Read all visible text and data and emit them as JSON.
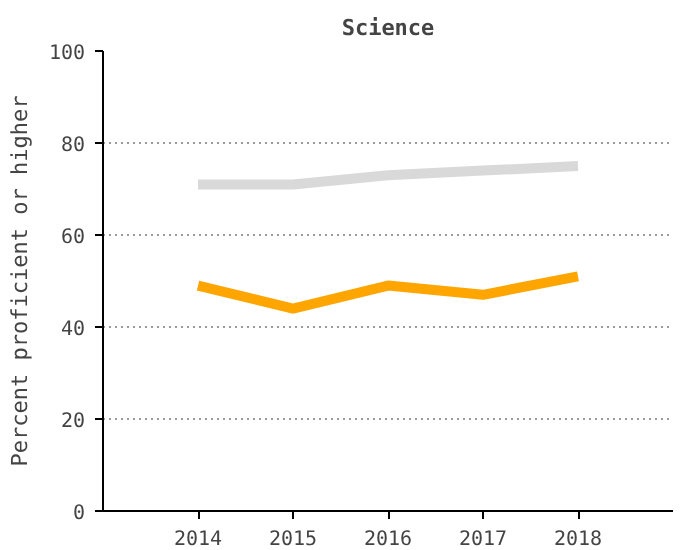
{
  "chart_data": {
    "type": "line",
    "title": "Science",
    "ylabel": "Percent proficient or higher",
    "x": [
      2014,
      2015,
      2016,
      2017,
      2018
    ],
    "xlim": [
      2013,
      2019
    ],
    "xticks": [
      2014,
      2015,
      2016,
      2017,
      2018
    ],
    "ylim": [
      0,
      100
    ],
    "yticks": [
      0,
      20,
      40,
      60,
      80,
      100
    ],
    "grid": "y",
    "line_style": "solid",
    "marker": "none",
    "series": [
      {
        "color": "#d9d9d9",
        "values": [
          71,
          71,
          73,
          74,
          75
        ]
      },
      {
        "color": "#ffa500",
        "values": [
          49,
          44,
          49,
          47,
          51
        ]
      }
    ]
  }
}
